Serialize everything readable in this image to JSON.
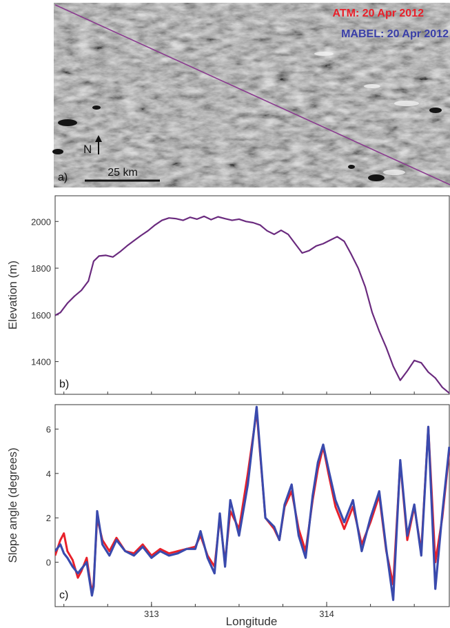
{
  "panel_a": {
    "label": "a)",
    "north_label": "N",
    "scale_label": "25 km",
    "legend": [
      {
        "text": "ATM:  20 Apr 2012",
        "color": "#e8202a"
      },
      {
        "text": "MABEL:  20 Apr 2012",
        "color": "#3a3fa8"
      }
    ]
  },
  "chart_data": [
    {
      "type": "line",
      "panel": "b)",
      "ylabel": "Elevation (m)",
      "xlim": [
        312.45,
        314.7
      ],
      "ylim": [
        1260,
        2110
      ],
      "yticks": [
        1400,
        1600,
        1800,
        2000
      ],
      "series": [
        {
          "color": "#6a2a7e",
          "x": [
            312.45,
            312.48,
            312.52,
            312.56,
            312.6,
            312.64,
            312.67,
            312.7,
            312.74,
            312.78,
            312.82,
            312.86,
            312.9,
            312.94,
            312.98,
            313.02,
            313.06,
            313.1,
            313.14,
            313.18,
            313.22,
            313.26,
            313.3,
            313.34,
            313.38,
            313.42,
            313.46,
            313.5,
            313.54,
            313.58,
            313.62,
            313.66,
            313.7,
            313.74,
            313.78,
            313.82,
            313.86,
            313.9,
            313.94,
            313.98,
            314.02,
            314.06,
            314.1,
            314.14,
            314.18,
            314.22,
            314.26,
            314.3,
            314.34,
            314.38,
            314.42,
            314.46,
            314.5,
            314.54,
            314.58,
            314.62,
            314.66,
            314.7
          ],
          "y": [
            1598,
            1610,
            1650,
            1680,
            1705,
            1745,
            1830,
            1852,
            1855,
            1848,
            1870,
            1895,
            1918,
            1940,
            1960,
            1985,
            2005,
            2015,
            2012,
            2005,
            2018,
            2010,
            2022,
            2008,
            2020,
            2012,
            2005,
            2010,
            2000,
            1995,
            1985,
            1960,
            1945,
            1962,
            1945,
            1905,
            1865,
            1875,
            1895,
            1905,
            1920,
            1935,
            1915,
            1860,
            1800,
            1720,
            1610,
            1530,
            1460,
            1380,
            1320,
            1360,
            1405,
            1395,
            1355,
            1330,
            1290,
            1265
          ]
        }
      ]
    },
    {
      "type": "line",
      "panel": "c)",
      "xlabel": "Longitude",
      "ylabel": "Slope angle (degrees)",
      "xlim": [
        312.45,
        314.7
      ],
      "ylim": [
        -2.0,
        7.1
      ],
      "xticks": [
        313,
        314
      ],
      "yticks": [
        0,
        2,
        4,
        6
      ],
      "series": [
        {
          "name": "ATM",
          "color": "#e8202a",
          "x": [
            312.45,
            312.48,
            312.5,
            312.52,
            312.55,
            312.58,
            312.6,
            312.63,
            312.66,
            312.67,
            312.69,
            312.72,
            312.76,
            312.8,
            312.85,
            312.9,
            312.95,
            313.0,
            313.05,
            313.1,
            313.15,
            313.2,
            313.25,
            313.28,
            313.32,
            313.36,
            313.39,
            313.42,
            313.45,
            313.5,
            313.55,
            313.6,
            313.65,
            313.7,
            313.73,
            313.76,
            313.8,
            313.84,
            313.88,
            313.92,
            313.95,
            313.98,
            314.01,
            314.05,
            314.1,
            314.15,
            314.2,
            314.25,
            314.3,
            314.34,
            314.38,
            314.42,
            314.46,
            314.5,
            314.54,
            314.58,
            314.62,
            314.66,
            314.7
          ],
          "y": [
            0.3,
            1.0,
            1.3,
            0.5,
            0.1,
            -0.7,
            -0.4,
            0.2,
            -1.4,
            -0.9,
            2.0,
            1.0,
            0.5,
            1.1,
            0.5,
            0.4,
            0.8,
            0.3,
            0.6,
            0.4,
            0.5,
            0.6,
            0.7,
            1.2,
            0.3,
            -0.2,
            2.0,
            0.0,
            2.3,
            1.5,
            4.0,
            6.8,
            2.0,
            1.5,
            1.0,
            2.5,
            3.2,
            1.5,
            0.5,
            2.8,
            4.2,
            5.2,
            4.0,
            2.5,
            1.5,
            2.5,
            0.8,
            1.8,
            3.0,
            0.5,
            -1.0,
            4.5,
            1.0,
            2.5,
            0.5,
            6.1,
            0.0,
            2.0,
            5.0
          ]
        },
        {
          "name": "MABEL",
          "color": "#3a4aad",
          "x": [
            312.45,
            312.48,
            312.5,
            312.52,
            312.55,
            312.58,
            312.6,
            312.63,
            312.66,
            312.67,
            312.69,
            312.72,
            312.76,
            312.8,
            312.85,
            312.9,
            312.95,
            313.0,
            313.05,
            313.1,
            313.15,
            313.2,
            313.25,
            313.28,
            313.32,
            313.36,
            313.39,
            313.42,
            313.45,
            313.5,
            313.55,
            313.6,
            313.65,
            313.7,
            313.73,
            313.76,
            313.8,
            313.84,
            313.88,
            313.92,
            313.95,
            313.98,
            314.01,
            314.05,
            314.1,
            314.15,
            314.2,
            314.25,
            314.3,
            314.34,
            314.38,
            314.42,
            314.46,
            314.5,
            314.54,
            314.58,
            314.62,
            314.66,
            314.7
          ],
          "y": [
            0.5,
            0.8,
            0.4,
            0.2,
            -0.2,
            -0.5,
            -0.3,
            0.0,
            -1.5,
            -1.1,
            2.3,
            0.8,
            0.3,
            1.0,
            0.5,
            0.3,
            0.7,
            0.2,
            0.5,
            0.3,
            0.4,
            0.6,
            0.6,
            1.4,
            0.2,
            -0.5,
            2.2,
            -0.2,
            2.8,
            1.2,
            3.5,
            7.0,
            2.0,
            1.6,
            1.0,
            2.6,
            3.5,
            1.2,
            0.2,
            3.0,
            4.5,
            5.3,
            4.2,
            2.8,
            1.8,
            2.8,
            0.5,
            2.0,
            3.2,
            0.6,
            -1.7,
            4.6,
            1.2,
            2.6,
            0.3,
            6.1,
            -1.2,
            2.2,
            5.2
          ]
        }
      ]
    }
  ]
}
